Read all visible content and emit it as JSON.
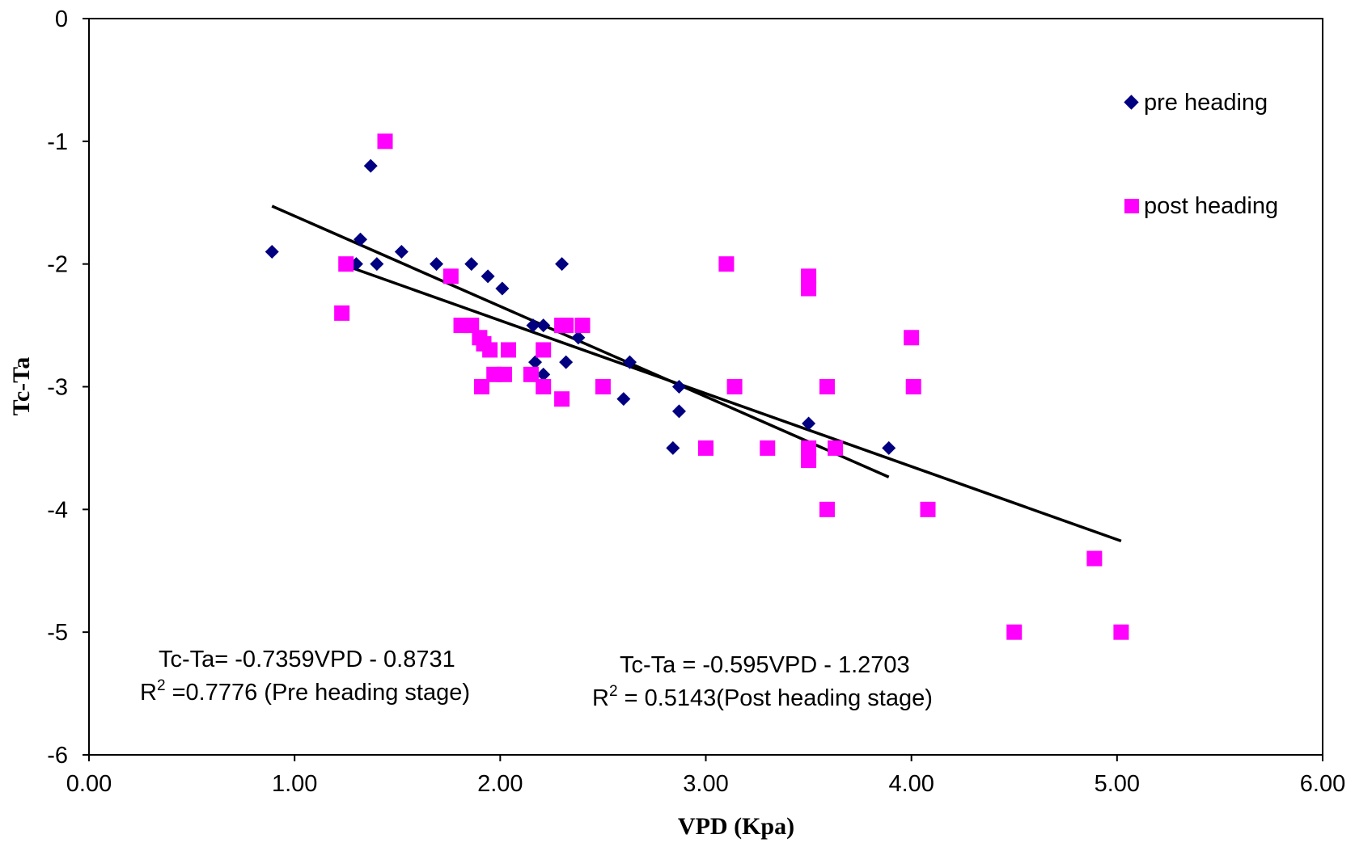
{
  "chart_data": {
    "type": "scatter",
    "xlabel": "VPD (Kpa)",
    "ylabel": "Tc-Ta",
    "xlim": [
      0,
      6
    ],
    "ylim": [
      -6,
      0
    ],
    "x_ticks": [
      "0.00",
      "1.00",
      "2.00",
      "3.00",
      "4.00",
      "5.00",
      "6.00"
    ],
    "x_tick_values": [
      0,
      1,
      2,
      3,
      4,
      5,
      6
    ],
    "y_ticks": [
      "0",
      "-1",
      "-2",
      "-3",
      "-4",
      "-5",
      "-6"
    ],
    "y_tick_values": [
      0,
      -1,
      -2,
      -3,
      -4,
      -5,
      -6
    ],
    "grid": false,
    "legend_position": "top-right",
    "colors": {
      "pre": "#000080",
      "post": "#ff00ff",
      "trend": "#000000"
    },
    "series": [
      {
        "name": "pre heading",
        "marker": "diamond",
        "points": [
          [
            0.89,
            -1.9
          ],
          [
            1.3,
            -2.0
          ],
          [
            1.32,
            -1.8
          ],
          [
            1.37,
            -1.2
          ],
          [
            1.4,
            -2.0
          ],
          [
            1.52,
            -1.9
          ],
          [
            1.69,
            -2.0
          ],
          [
            1.86,
            -2.0
          ],
          [
            1.94,
            -2.1
          ],
          [
            2.01,
            -2.2
          ],
          [
            2.16,
            -2.5
          ],
          [
            2.17,
            -2.8
          ],
          [
            2.21,
            -2.5
          ],
          [
            2.21,
            -2.9
          ],
          [
            2.3,
            -2.0
          ],
          [
            2.32,
            -2.8
          ],
          [
            2.38,
            -2.6
          ],
          [
            2.6,
            -3.1
          ],
          [
            2.63,
            -2.8
          ],
          [
            2.84,
            -3.5
          ],
          [
            2.87,
            -3.0
          ],
          [
            2.87,
            -3.2
          ],
          [
            3.5,
            -3.3
          ],
          [
            3.89,
            -3.5
          ]
        ],
        "trendline": {
          "x_range": [
            0.89,
            3.89
          ],
          "slope": -0.7359,
          "intercept": -0.8731,
          "equation": "Tc-Ta= -0.7359VPD - 0.8731",
          "r2_prefix": "R",
          "r2_sup": "2",
          "r2_rest": " =0.7776 (Pre heading stage)"
        }
      },
      {
        "name": "post heading",
        "marker": "square",
        "points": [
          [
            1.23,
            -2.4
          ],
          [
            1.25,
            -2.0
          ],
          [
            1.44,
            -1.0
          ],
          [
            1.76,
            -2.1
          ],
          [
            1.81,
            -2.5
          ],
          [
            1.86,
            -2.5
          ],
          [
            1.9,
            -2.6
          ],
          [
            1.92,
            -2.65
          ],
          [
            1.91,
            -3.0
          ],
          [
            1.95,
            -2.7
          ],
          [
            1.97,
            -2.9
          ],
          [
            2.02,
            -2.9
          ],
          [
            2.04,
            -2.7
          ],
          [
            2.15,
            -2.9
          ],
          [
            2.21,
            -2.7
          ],
          [
            2.21,
            -3.0
          ],
          [
            2.3,
            -2.5
          ],
          [
            2.32,
            -2.5
          ],
          [
            2.3,
            -3.1
          ],
          [
            2.4,
            -2.5
          ],
          [
            2.5,
            -3.0
          ],
          [
            3.0,
            -3.5
          ],
          [
            3.1,
            -2.0
          ],
          [
            3.14,
            -3.0
          ],
          [
            3.3,
            -3.5
          ],
          [
            3.5,
            -2.1
          ],
          [
            3.5,
            -2.2
          ],
          [
            3.5,
            -3.5
          ],
          [
            3.5,
            -3.6
          ],
          [
            3.59,
            -3.0
          ],
          [
            3.59,
            -4.0
          ],
          [
            3.63,
            -3.5
          ],
          [
            4.0,
            -2.6
          ],
          [
            4.01,
            -3.0
          ],
          [
            4.08,
            -4.0
          ],
          [
            4.5,
            -5.0
          ],
          [
            4.89,
            -4.4
          ],
          [
            5.02,
            -5.0
          ]
        ],
        "trendline": {
          "x_range": [
            1.23,
            5.02
          ],
          "slope": -0.595,
          "intercept": -1.2703,
          "equation": "Tc-Ta = -0.595VPD - 1.2703",
          "r2_prefix": "R",
          "r2_sup": "2",
          "r2_rest": " = 0.5143(Post heading stage)"
        }
      }
    ]
  }
}
